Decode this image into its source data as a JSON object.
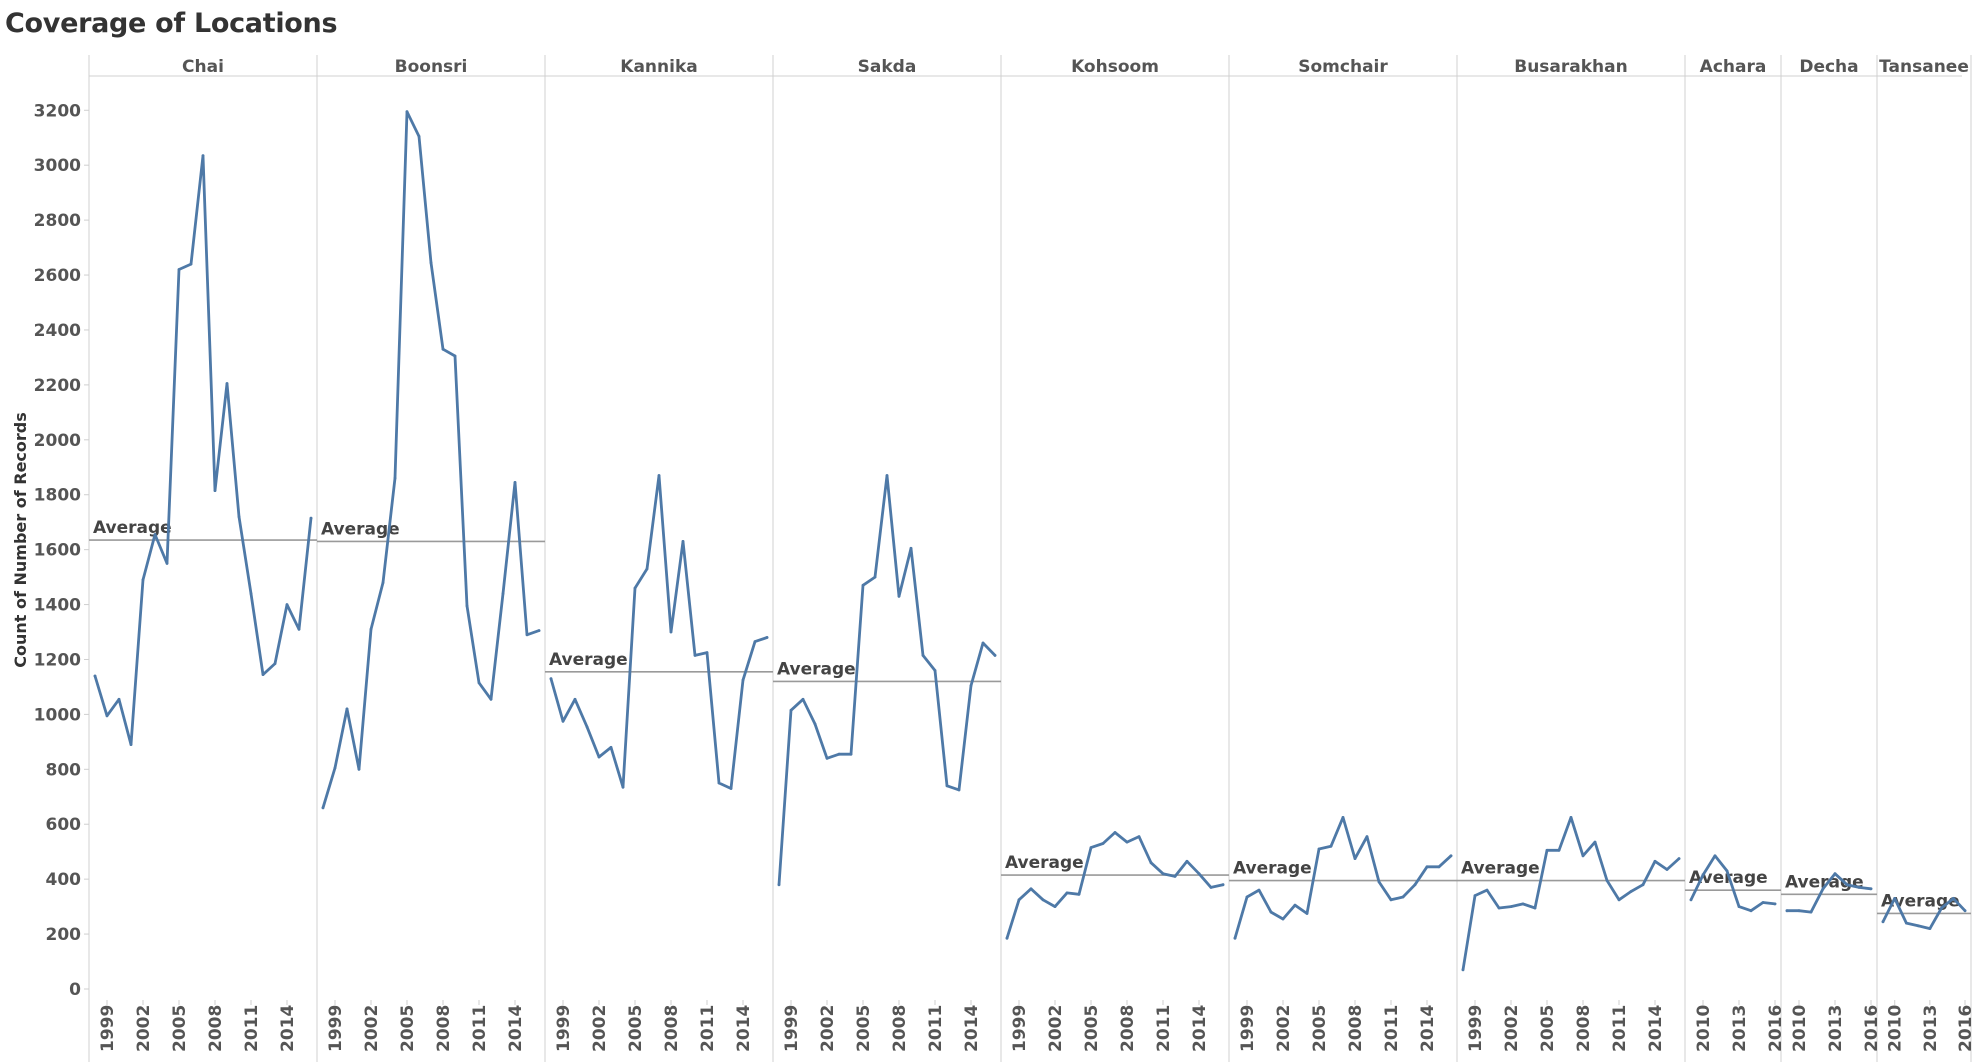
{
  "title": "Coverage of Locations",
  "chart_data": {
    "type": "line",
    "title": "Coverage of Locations",
    "ylabel": "Count of Number of Records",
    "xlabel": "",
    "ylim": [
      0,
      3350
    ],
    "yticks": [
      0,
      200,
      400,
      600,
      800,
      1000,
      1200,
      1400,
      1600,
      1800,
      2000,
      2200,
      2400,
      2600,
      2800,
      3000,
      3200
    ],
    "grid": false,
    "reference_line_label": "Average",
    "color": "#4e79a7",
    "panels": [
      {
        "name": "Chai",
        "x_start": 1998,
        "x_end": 2016,
        "xticks": [
          1999,
          2002,
          2005,
          2008,
          2011,
          2014
        ],
        "x": [
          1998,
          1999,
          2000,
          2001,
          2002,
          2003,
          2004,
          2005,
          2006,
          2007,
          2008,
          2009,
          2010,
          2011,
          2012,
          2013,
          2014,
          2015,
          2016
        ],
        "values": [
          1140,
          995,
          1055,
          890,
          1490,
          1655,
          1550,
          2620,
          2640,
          3035,
          1815,
          2205,
          1720,
          1440,
          1145,
          1185,
          1400,
          1310,
          1715
        ],
        "average": 1635
      },
      {
        "name": "Boonsri",
        "x_start": 1998,
        "x_end": 2016,
        "xticks": [
          1999,
          2002,
          2005,
          2008,
          2011,
          2014
        ],
        "x": [
          1998,
          1999,
          2000,
          2001,
          2002,
          2003,
          2004,
          2005,
          2006,
          2007,
          2008,
          2009,
          2010,
          2011,
          2012,
          2013,
          2014,
          2015,
          2016
        ],
        "values": [
          660,
          805,
          1020,
          800,
          1310,
          1480,
          1860,
          3195,
          3105,
          2645,
          2330,
          2305,
          1395,
          1115,
          1055,
          1440,
          1845,
          1290,
          1305
        ],
        "average": 1630
      },
      {
        "name": "Kannika",
        "x_start": 1998,
        "x_end": 2016,
        "xticks": [
          1999,
          2002,
          2005,
          2008,
          2011,
          2014
        ],
        "x": [
          1998,
          1999,
          2000,
          2001,
          2002,
          2003,
          2004,
          2005,
          2006,
          2007,
          2008,
          2009,
          2010,
          2011,
          2012,
          2013,
          2014,
          2015,
          2016
        ],
        "values": [
          1130,
          975,
          1055,
          955,
          845,
          880,
          735,
          1460,
          1530,
          1870,
          1300,
          1630,
          1215,
          1225,
          750,
          730,
          1125,
          1265,
          1280
        ],
        "average": 1155
      },
      {
        "name": "Sakda",
        "x_start": 1998,
        "x_end": 2016,
        "xticks": [
          1999,
          2002,
          2005,
          2008,
          2011,
          2014
        ],
        "x": [
          1998,
          1999,
          2000,
          2001,
          2002,
          2003,
          2004,
          2005,
          2006,
          2007,
          2008,
          2009,
          2010,
          2011,
          2012,
          2013,
          2014,
          2015,
          2016
        ],
        "values": [
          380,
          1015,
          1055,
          965,
          840,
          855,
          855,
          1470,
          1500,
          1870,
          1430,
          1605,
          1215,
          1160,
          740,
          725,
          1105,
          1260,
          1215
        ],
        "average": 1120
      },
      {
        "name": "Kohsoom",
        "x_start": 1998,
        "x_end": 2016,
        "xticks": [
          1999,
          2002,
          2005,
          2008,
          2011,
          2014
        ],
        "x": [
          1998,
          1999,
          2000,
          2001,
          2002,
          2003,
          2004,
          2005,
          2006,
          2007,
          2008,
          2009,
          2010,
          2011,
          2012,
          2013,
          2014,
          2015,
          2016
        ],
        "values": [
          185,
          325,
          365,
          325,
          300,
          350,
          345,
          515,
          530,
          570,
          535,
          555,
          460,
          420,
          410,
          465,
          420,
          370,
          380
        ],
        "average": 415
      },
      {
        "name": "Somchair",
        "x_start": 1998,
        "x_end": 2016,
        "xticks": [
          1999,
          2002,
          2005,
          2008,
          2011,
          2014
        ],
        "x": [
          1998,
          1999,
          2000,
          2001,
          2002,
          2003,
          2004,
          2005,
          2006,
          2007,
          2008,
          2009,
          2010,
          2011,
          2012,
          2013,
          2014,
          2015,
          2016
        ],
        "values": [
          185,
          335,
          360,
          280,
          255,
          305,
          275,
          510,
          520,
          625,
          475,
          555,
          390,
          325,
          335,
          380,
          445,
          445,
          485
        ],
        "average": 395
      },
      {
        "name": "Busarakhan",
        "x_start": 1998,
        "x_end": 2016,
        "xticks": [
          1999,
          2002,
          2005,
          2008,
          2011,
          2014
        ],
        "x": [
          1998,
          1999,
          2000,
          2001,
          2002,
          2003,
          2004,
          2005,
          2006,
          2007,
          2008,
          2009,
          2010,
          2011,
          2012,
          2013,
          2014,
          2015,
          2016
        ],
        "values": [
          70,
          340,
          360,
          295,
          300,
          310,
          295,
          505,
          505,
          625,
          485,
          535,
          395,
          325,
          355,
          380,
          465,
          435,
          475
        ],
        "average": 395
      },
      {
        "name": "Achara",
        "x_start": 2009,
        "x_end": 2016,
        "xticks": [
          2010,
          2013,
          2016
        ],
        "x": [
          2009,
          2010,
          2011,
          2012,
          2013,
          2014,
          2015,
          2016
        ],
        "values": [
          325,
          415,
          485,
          430,
          300,
          285,
          315,
          310
        ],
        "average": 360
      },
      {
        "name": "Decha",
        "x_start": 2009,
        "x_end": 2016,
        "xticks": [
          2010,
          2013,
          2016
        ],
        "x": [
          2009,
          2010,
          2011,
          2012,
          2013,
          2014,
          2015,
          2016
        ],
        "values": [
          285,
          285,
          280,
          365,
          420,
          380,
          370,
          365
        ],
        "average": 345
      },
      {
        "name": "Tansanee",
        "x_start": 2009,
        "x_end": 2016,
        "xticks": [
          2010,
          2013,
          2016
        ],
        "x": [
          2009,
          2010,
          2011,
          2012,
          2013,
          2014,
          2015,
          2016
        ],
        "values": [
          245,
          330,
          240,
          230,
          220,
          295,
          330,
          285
        ],
        "average": 275
      }
    ]
  }
}
